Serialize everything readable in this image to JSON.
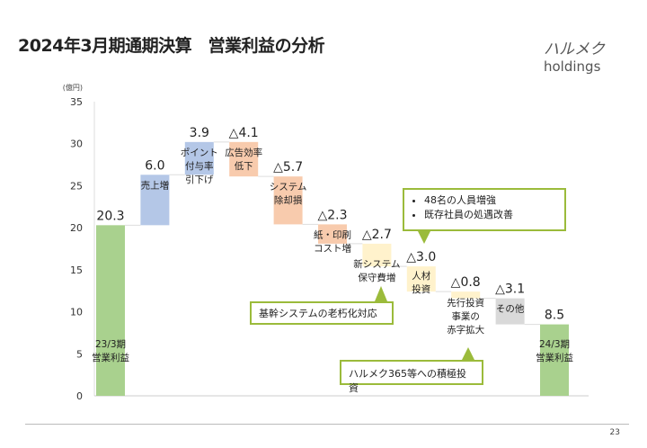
{
  "header": {
    "title": "2024年3月期通期決算　営業利益の分析",
    "logo_main": "ハルメク",
    "logo_sub": "holdings"
  },
  "page_number": "23",
  "chart_data": {
    "type": "waterfall",
    "unit_label": "(億円)",
    "ylim": [
      0,
      35
    ],
    "yticks": [
      0,
      5,
      10,
      15,
      20,
      25,
      30,
      35
    ],
    "grid": false,
    "bars": [
      {
        "label": "23/3期\n営業利益",
        "value": 20.3,
        "kind": "total",
        "value_label": "20.3",
        "color": "#a9d18e"
      },
      {
        "label": "売上増",
        "value": 6.0,
        "kind": "delta",
        "value_label": "6.0",
        "color": "#b4c7e7"
      },
      {
        "label": "ポイント\n付与率\n引下げ",
        "value": 3.9,
        "kind": "delta",
        "value_label": "3.9",
        "color": "#b4c7e7"
      },
      {
        "label": "広告効率\n低下",
        "value": -4.1,
        "kind": "delta",
        "value_label": "△4.1",
        "color": "#f8cbad"
      },
      {
        "label": "システム\n除却損",
        "value": -5.7,
        "kind": "delta",
        "value_label": "△5.7",
        "color": "#f8cbad"
      },
      {
        "label": "紙・印刷\nコスト増",
        "value": -2.3,
        "kind": "delta",
        "value_label": "△2.3",
        "color": "#f8cbad"
      },
      {
        "label": "新システム\n保守費増",
        "value": -2.7,
        "kind": "delta",
        "value_label": "△2.7",
        "color": "#fff2cc"
      },
      {
        "label": "人材\n投資",
        "value": -3.0,
        "kind": "delta",
        "value_label": "△3.0",
        "color": "#fff2cc"
      },
      {
        "label": "先行投資\n事業の\n赤字拡大",
        "value": -0.8,
        "kind": "delta",
        "value_label": "△0.8",
        "color": "#fff2cc"
      },
      {
        "label": "その他",
        "value": -3.1,
        "kind": "delta",
        "value_label": "△3.1",
        "color": "#d9d9d9"
      },
      {
        "label": "24/3期\n営業利益",
        "value": 8.5,
        "kind": "total",
        "value_label": "8.5",
        "color": "#a9d18e"
      }
    ]
  },
  "callouts": {
    "legacy": "基幹システムの老朽化対応",
    "staff": [
      "48名の人員増強",
      "既存社員の処遇改善"
    ],
    "invest": "ハルメク365等への積極投資"
  }
}
